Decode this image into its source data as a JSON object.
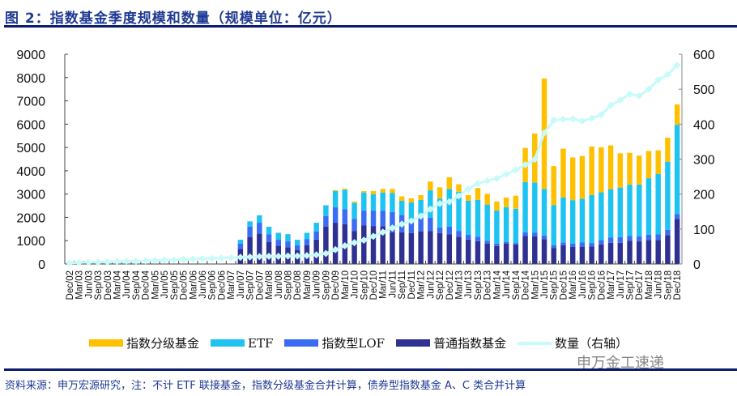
{
  "title": "图 2：指数基金季度规模和数量（规模单位：亿元）",
  "source": "资料来源：申万宏源研究，注：不计 ETF 联接基金，指数分级基金合并计算，债券型指数基金 A、C 类合并计算",
  "watermark": "申万金工速递",
  "colors": {
    "graded": "#FFC000",
    "etf": "#1EC3F2",
    "lof": "#3A6CF4",
    "normal": "#2E3192",
    "count": "#C8FAFA",
    "title": "#1f3a93",
    "rule": "#0b1b6e"
  },
  "chart_data": {
    "type": "bar",
    "stacked": true,
    "title": "",
    "ylabel": "",
    "y2label": "",
    "ylim": [
      0,
      9000
    ],
    "yticks": [
      0,
      1000,
      2000,
      3000,
      4000,
      5000,
      6000,
      7000,
      8000,
      9000
    ],
    "y2lim": [
      0,
      600
    ],
    "y2ticks": [
      0,
      100,
      200,
      300,
      400,
      500,
      600
    ],
    "grid": false,
    "legend": "bottom",
    "categories": [
      "Dec/02",
      "Mar/03",
      "Jun/03",
      "Sep/03",
      "Dec/03",
      "Mar/04",
      "Jun/04",
      "Sep/04",
      "Dec/04",
      "Mar/05",
      "Jun/05",
      "Sep/05",
      "Dec/05",
      "Mar/06",
      "Jun/06",
      "Sep/06",
      "Dec/06",
      "Mar/07",
      "Jun/07",
      "Sep/07",
      "Dec/07",
      "Mar/08",
      "Jun/08",
      "Sep/08",
      "Dec/08",
      "Mar/09",
      "Jun/09",
      "Sep/09",
      "Dec/09",
      "Mar/10",
      "Jun/10",
      "Sep/10",
      "Dec/10",
      "Mar/11",
      "Jun/11",
      "Sep/11",
      "Dec/11",
      "Mar/12",
      "Jun/12",
      "Sep/12",
      "Dec/12",
      "Mar/13",
      "Jun/13",
      "Sep/13",
      "Dec/13",
      "Mar/14",
      "Jun/14",
      "Sep/14",
      "Dec/14",
      "Mar/15",
      "Jun/15",
      "Sep/15",
      "Dec/15",
      "Mar/16",
      "Jun/16",
      "Sep/16",
      "Dec/16",
      "Mar/17",
      "Jun/17",
      "Sep/17",
      "Dec/17",
      "Mar/18",
      "Jun/18",
      "Sep/18",
      "Dec/18"
    ],
    "series": [
      {
        "name": "普通指数基金",
        "key": "normal",
        "axis": "left",
        "values": [
          0,
          0,
          0,
          0,
          0,
          0,
          0,
          0,
          0,
          0,
          0,
          0,
          0,
          0,
          0,
          0,
          0,
          0,
          650,
          1160,
          1300,
          950,
          790,
          710,
          590,
          800,
          1050,
          1600,
          1770,
          1710,
          1420,
          1650,
          1630,
          1620,
          1360,
          1360,
          1330,
          1390,
          1420,
          1330,
          1280,
          1170,
          1050,
          980,
          880,
          770,
          870,
          840,
          1210,
          1190,
          1070,
          690,
          810,
          730,
          730,
          750,
          840,
          910,
          910,
          990,
          970,
          1030,
          1030,
          1240,
          1930
        ]
      },
      {
        "name": "指数型LOF",
        "key": "lof",
        "axis": "left",
        "values": [
          0,
          0,
          0,
          0,
          0,
          0,
          0,
          0,
          0,
          0,
          0,
          0,
          0,
          0,
          0,
          0,
          0,
          0,
          220,
          440,
          470,
          330,
          250,
          260,
          220,
          260,
          350,
          460,
          660,
          640,
          520,
          640,
          660,
          670,
          870,
          740,
          470,
          610,
          560,
          240,
          320,
          250,
          200,
          190,
          120,
          100,
          80,
          60,
          150,
          160,
          150,
          110,
          120,
          140,
          190,
          150,
          190,
          220,
          240,
          210,
          210,
          230,
          240,
          230,
          220
        ]
      },
      {
        "name": "ETF",
        "key": "etf",
        "axis": "left",
        "values": [
          0,
          0,
          0,
          0,
          0,
          0,
          0,
          0,
          0,
          0,
          0,
          0,
          0,
          0,
          0,
          0,
          0,
          0,
          170,
          230,
          320,
          320,
          300,
          310,
          230,
          280,
          370,
          460,
          700,
          840,
          680,
          780,
          700,
          780,
          820,
          610,
          840,
          750,
          1180,
          1240,
          1620,
          1680,
          1460,
          1580,
          1550,
          1420,
          1490,
          1470,
          2160,
          2140,
          2000,
          1730,
          1930,
          1870,
          1880,
          2060,
          2050,
          2080,
          2130,
          2210,
          2230,
          2420,
          2590,
          2920,
          3820
        ]
      },
      {
        "name": "指数分级基金",
        "key": "graded",
        "axis": "left",
        "values": [
          0,
          0,
          0,
          0,
          0,
          0,
          0,
          0,
          0,
          0,
          0,
          0,
          0,
          0,
          0,
          0,
          0,
          0,
          0,
          0,
          0,
          0,
          0,
          0,
          0,
          0,
          0,
          0,
          40,
          40,
          60,
          60,
          140,
          150,
          170,
          190,
          180,
          210,
          380,
          480,
          500,
          320,
          250,
          510,
          460,
          390,
          410,
          560,
          1460,
          2110,
          4740,
          1670,
          2090,
          1830,
          1830,
          2080,
          1930,
          1880,
          1470,
          1360,
          1240,
          1170,
          1020,
          1030,
          880
        ]
      },
      {
        "name": "数量（右轴）",
        "key": "count",
        "axis": "right",
        "type": "line",
        "values": [
          3,
          4,
          5,
          5,
          6,
          7,
          8,
          8,
          9,
          10,
          11,
          12,
          13,
          14,
          15,
          16,
          17,
          18,
          19,
          20,
          21,
          22,
          22,
          23,
          23,
          24,
          26,
          30,
          41,
          52,
          61,
          68,
          79,
          91,
          103,
          114,
          123,
          137,
          157,
          173,
          178,
          195,
          215,
          230,
          238,
          245,
          257,
          269,
          284,
          299,
          375,
          411,
          414,
          415,
          409,
          417,
          427,
          454,
          469,
          486,
          481,
          500,
          527,
          542,
          569
        ]
      }
    ],
    "legend_order": [
      "指数分级基金",
      "ETF",
      "指数型LOF",
      "普通指数基金",
      "数量（右轴）"
    ]
  }
}
